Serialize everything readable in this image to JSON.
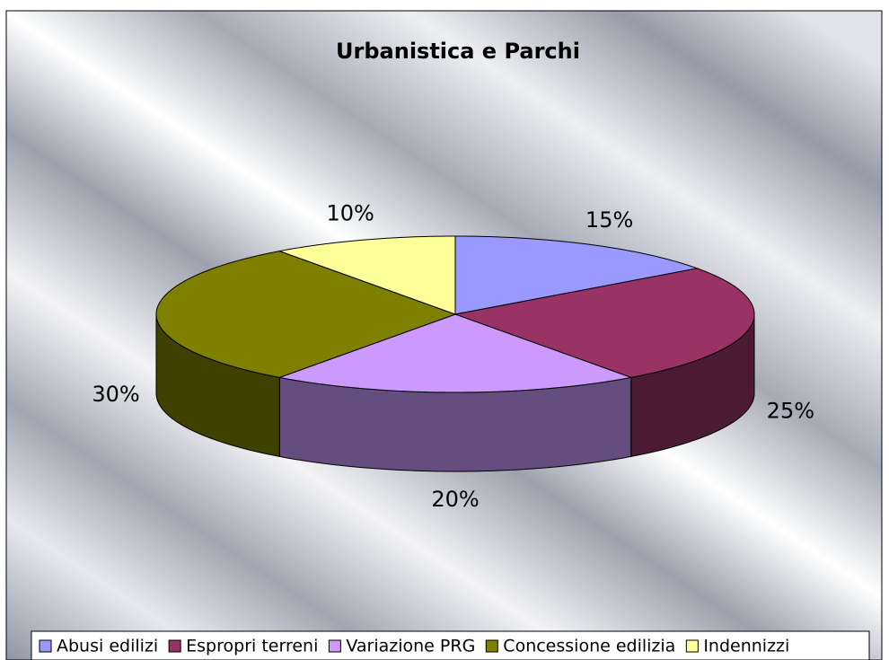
{
  "chart_data": {
    "type": "pie3d",
    "title": "Urbanistica e Parchi",
    "categories": [
      "Abusi edilizi",
      "Espropri terreni",
      "Variazione PRG",
      "Concessione edilizia",
      "Indennizzi"
    ],
    "values": [
      15,
      25,
      20,
      30,
      10
    ],
    "value_labels": [
      "15%",
      "25%",
      "20%",
      "30%",
      "10%"
    ],
    "colors": [
      "#9999ff",
      "#993366",
      "#cc99ff",
      "#808000",
      "#ffff99"
    ],
    "legend": "bottom"
  }
}
